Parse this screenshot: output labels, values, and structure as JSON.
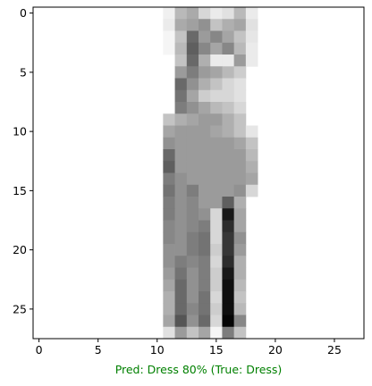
{
  "chart_data": {
    "type": "heatmap",
    "colormap": "binary",
    "value_range": [
      0,
      255
    ],
    "xlim": [
      -0.5,
      27.5
    ],
    "ylim": [
      27.5,
      -0.5
    ],
    "x_ticks": [
      0,
      5,
      10,
      15,
      20,
      25
    ],
    "y_ticks": [
      0,
      5,
      10,
      15,
      20,
      25
    ],
    "x_tick_labels": [
      "0",
      "5",
      "10",
      "15",
      "20",
      "25"
    ],
    "y_tick_labels": [
      "0",
      "5",
      "10",
      "15",
      "20",
      "25"
    ],
    "xlabel": "Pred: Dress 80% (True: Dress)",
    "xlabel_color": "#008000",
    "grid": false,
    "rows": [
      [
        0,
        0,
        0,
        0,
        0,
        0,
        0,
        0,
        0,
        0,
        0,
        15,
        70,
        85,
        40,
        20,
        30,
        70,
        20,
        0,
        0,
        0,
        0,
        0,
        0,
        0,
        0,
        0
      ],
      [
        0,
        0,
        0,
        0,
        0,
        0,
        0,
        0,
        0,
        0,
        0,
        20,
        85,
        95,
        110,
        60,
        80,
        90,
        30,
        0,
        0,
        0,
        0,
        0,
        0,
        0,
        0,
        0
      ],
      [
        0,
        0,
        0,
        0,
        0,
        0,
        0,
        0,
        0,
        0,
        0,
        10,
        60,
        150,
        100,
        120,
        90,
        60,
        25,
        0,
        0,
        0,
        0,
        0,
        0,
        0,
        0,
        0
      ],
      [
        0,
        0,
        0,
        0,
        0,
        0,
        0,
        0,
        0,
        0,
        0,
        10,
        70,
        160,
        120,
        90,
        120,
        70,
        20,
        0,
        0,
        0,
        0,
        0,
        0,
        0,
        0,
        0
      ],
      [
        0,
        0,
        0,
        0,
        0,
        0,
        0,
        0,
        0,
        0,
        0,
        0,
        60,
        150,
        80,
        20,
        20,
        100,
        20,
        0,
        0,
        0,
        0,
        0,
        0,
        0,
        0,
        0
      ],
      [
        0,
        0,
        0,
        0,
        0,
        0,
        0,
        0,
        0,
        0,
        0,
        0,
        100,
        130,
        100,
        90,
        70,
        50,
        0,
        0,
        0,
        0,
        0,
        0,
        0,
        0,
        0,
        0
      ],
      [
        0,
        0,
        0,
        0,
        0,
        0,
        0,
        0,
        0,
        0,
        0,
        0,
        150,
        110,
        80,
        60,
        40,
        30,
        0,
        0,
        0,
        0,
        0,
        0,
        0,
        0,
        0,
        0
      ],
      [
        0,
        0,
        0,
        0,
        0,
        0,
        0,
        0,
        0,
        0,
        0,
        0,
        140,
        90,
        50,
        40,
        40,
        30,
        0,
        0,
        0,
        0,
        0,
        0,
        0,
        0,
        0,
        0
      ],
      [
        0,
        0,
        0,
        0,
        0,
        0,
        0,
        0,
        0,
        0,
        0,
        0,
        130,
        110,
        90,
        70,
        60,
        40,
        0,
        0,
        0,
        0,
        0,
        0,
        0,
        0,
        0,
        0
      ],
      [
        0,
        0,
        0,
        0,
        0,
        0,
        0,
        0,
        0,
        0,
        0,
        60,
        80,
        90,
        100,
        100,
        80,
        60,
        0,
        0,
        0,
        0,
        0,
        0,
        0,
        0,
        0,
        0
      ],
      [
        0,
        0,
        0,
        0,
        0,
        0,
        0,
        0,
        0,
        0,
        0,
        90,
        100,
        100,
        100,
        90,
        80,
        60,
        25,
        0,
        0,
        0,
        0,
        0,
        0,
        0,
        0,
        0
      ],
      [
        0,
        0,
        0,
        0,
        0,
        0,
        0,
        0,
        0,
        0,
        0,
        110,
        100,
        100,
        100,
        100,
        100,
        90,
        60,
        0,
        0,
        0,
        0,
        0,
        0,
        0,
        0,
        0
      ],
      [
        0,
        0,
        0,
        0,
        0,
        0,
        0,
        0,
        0,
        0,
        0,
        150,
        100,
        100,
        100,
        100,
        100,
        100,
        70,
        0,
        0,
        0,
        0,
        0,
        0,
        0,
        0,
        0
      ],
      [
        0,
        0,
        0,
        0,
        0,
        0,
        0,
        0,
        0,
        0,
        0,
        160,
        100,
        100,
        100,
        100,
        100,
        100,
        80,
        0,
        0,
        0,
        0,
        0,
        0,
        0,
        0,
        0
      ],
      [
        0,
        0,
        0,
        0,
        0,
        0,
        0,
        0,
        0,
        0,
        0,
        130,
        110,
        100,
        100,
        100,
        100,
        100,
        90,
        0,
        0,
        0,
        0,
        0,
        0,
        0,
        0,
        0
      ],
      [
        0,
        0,
        0,
        0,
        0,
        0,
        0,
        0,
        0,
        0,
        0,
        140,
        110,
        130,
        100,
        100,
        100,
        110,
        40,
        0,
        0,
        0,
        0,
        0,
        0,
        0,
        0,
        0
      ],
      [
        0,
        0,
        0,
        0,
        0,
        0,
        0,
        0,
        0,
        0,
        0,
        130,
        110,
        120,
        100,
        100,
        160,
        80,
        0,
        0,
        0,
        0,
        0,
        0,
        0,
        0,
        0,
        0
      ],
      [
        0,
        0,
        0,
        0,
        0,
        0,
        0,
        0,
        0,
        0,
        0,
        130,
        110,
        120,
        110,
        40,
        230,
        90,
        0,
        0,
        0,
        0,
        0,
        0,
        0,
        0,
        0,
        0
      ],
      [
        0,
        0,
        0,
        0,
        0,
        0,
        0,
        0,
        0,
        0,
        0,
        120,
        110,
        120,
        130,
        40,
        210,
        90,
        0,
        0,
        0,
        0,
        0,
        0,
        0,
        0,
        0,
        0
      ],
      [
        0,
        0,
        0,
        0,
        0,
        0,
        0,
        0,
        0,
        0,
        0,
        120,
        110,
        130,
        140,
        40,
        200,
        110,
        0,
        0,
        0,
        0,
        0,
        0,
        0,
        0,
        0,
        0
      ],
      [
        0,
        0,
        0,
        0,
        0,
        0,
        0,
        0,
        0,
        0,
        0,
        110,
        110,
        130,
        140,
        50,
        200,
        100,
        0,
        0,
        0,
        0,
        0,
        0,
        0,
        0,
        0,
        0
      ],
      [
        0,
        0,
        0,
        0,
        0,
        0,
        0,
        0,
        0,
        0,
        0,
        110,
        130,
        120,
        130,
        40,
        210,
        80,
        0,
        0,
        0,
        0,
        0,
        0,
        0,
        0,
        0,
        0
      ],
      [
        0,
        0,
        0,
        0,
        0,
        0,
        0,
        0,
        0,
        0,
        0,
        100,
        140,
        110,
        130,
        50,
        230,
        80,
        0,
        0,
        0,
        0,
        0,
        0,
        0,
        0,
        0,
        0
      ],
      [
        0,
        0,
        0,
        0,
        0,
        0,
        0,
        0,
        0,
        0,
        0,
        90,
        150,
        110,
        130,
        50,
        240,
        70,
        0,
        0,
        0,
        0,
        0,
        0,
        0,
        0,
        0,
        0
      ],
      [
        0,
        0,
        0,
        0,
        0,
        0,
        0,
        0,
        0,
        0,
        0,
        80,
        150,
        110,
        140,
        40,
        240,
        60,
        0,
        0,
        0,
        0,
        0,
        0,
        0,
        0,
        0,
        0
      ],
      [
        0,
        0,
        0,
        0,
        0,
        0,
        0,
        0,
        0,
        0,
        0,
        80,
        150,
        120,
        140,
        50,
        240,
        70,
        0,
        0,
        0,
        0,
        0,
        0,
        0,
        0,
        0,
        0
      ],
      [
        0,
        0,
        0,
        0,
        0,
        0,
        0,
        0,
        0,
        0,
        0,
        90,
        170,
        110,
        150,
        40,
        250,
        120,
        0,
        0,
        0,
        0,
        0,
        0,
        0,
        0,
        0,
        0
      ],
      [
        0,
        0,
        0,
        0,
        0,
        0,
        0,
        0,
        0,
        0,
        0,
        30,
        100,
        60,
        90,
        10,
        130,
        60,
        0,
        0,
        0,
        0,
        0,
        0,
        0,
        0,
        0,
        0
      ]
    ]
  }
}
